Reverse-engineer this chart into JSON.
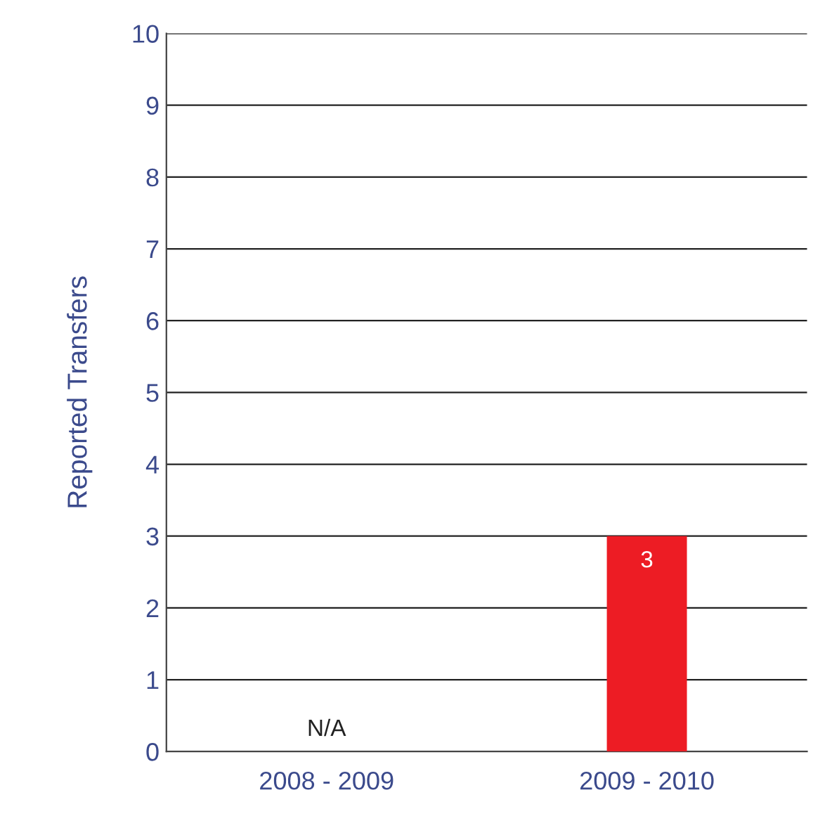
{
  "chart_data": {
    "type": "bar",
    "ylabel": "Reported Transfers",
    "categories": [
      "2008 - 2009",
      "2009 - 2010"
    ],
    "values": [
      null,
      3
    ],
    "value_labels": [
      "N/A",
      "3"
    ],
    "color": "#ed1c24",
    "ylim": [
      0,
      10
    ],
    "yticks": [
      0,
      1,
      2,
      3,
      4,
      5,
      6,
      7,
      8,
      9,
      10
    ],
    "grid": "y"
  }
}
